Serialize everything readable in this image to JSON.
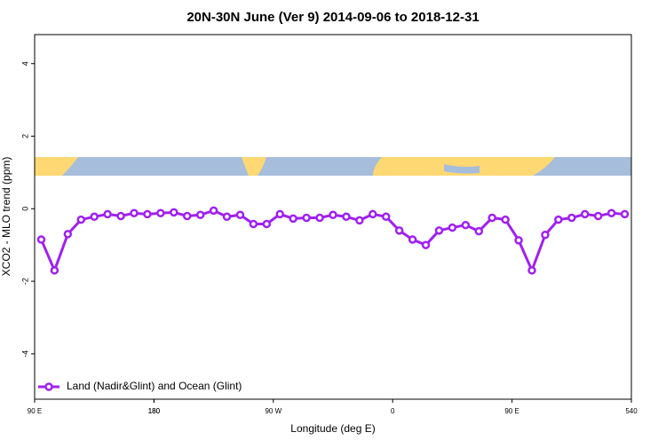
{
  "chart_data": {
    "type": "line",
    "title": "20N-30N June (Ver 9)   2014-09-06 to 2018-12-31",
    "x_label": "Longitude (deg E)",
    "y_label": "XCO2 - MLO trend (ppm)",
    "x": [
      95,
      105,
      115,
      125,
      135,
      145,
      155,
      165,
      175,
      185,
      195,
      205,
      215,
      225,
      235,
      245,
      255,
      265,
      275,
      285,
      295,
      305,
      315,
      325,
      335,
      345,
      355,
      365,
      375,
      385,
      395,
      405,
      415,
      425,
      435,
      445,
      455,
      465,
      475,
      485,
      495,
      505,
      515,
      525,
      535
    ],
    "series": [
      {
        "name": "Land (Nadir&Glint) and Ocean (Glint)",
        "color": "#a020f0",
        "values": [
          -0.85,
          -1.7,
          -0.7,
          -0.3,
          -0.22,
          -0.15,
          -0.2,
          -0.12,
          -0.15,
          -0.12,
          -0.1,
          -0.2,
          -0.17,
          -0.05,
          -0.22,
          -0.17,
          -0.42,
          -0.42,
          -0.15,
          -0.27,
          -0.25,
          -0.25,
          -0.17,
          -0.22,
          -0.32,
          -0.15,
          -0.22,
          -0.6,
          -0.85,
          -1.0,
          -0.6,
          -0.52,
          -0.45,
          -0.62,
          -0.25,
          -0.3,
          -0.87,
          -1.7,
          -0.72,
          -0.3,
          -0.25,
          -0.15,
          -0.2,
          -0.12,
          -0.15
        ]
      }
    ],
    "xlim": [
      90,
      540
    ],
    "xticks": [
      {
        "value": 90,
        "label": "90 E"
      },
      180,
      {
        "value": 270,
        "label": "90 W"
      },
      {
        "value": 360,
        "label": "0"
      },
      {
        "value": 450,
        "label": "90 E"
      },
      180,
      540
    ],
    "ylim": [
      -5.25,
      4.8
    ],
    "yticks": [
      -4,
      -2,
      0,
      2,
      4
    ],
    "legend": "bottom-left",
    "grid": false
  }
}
